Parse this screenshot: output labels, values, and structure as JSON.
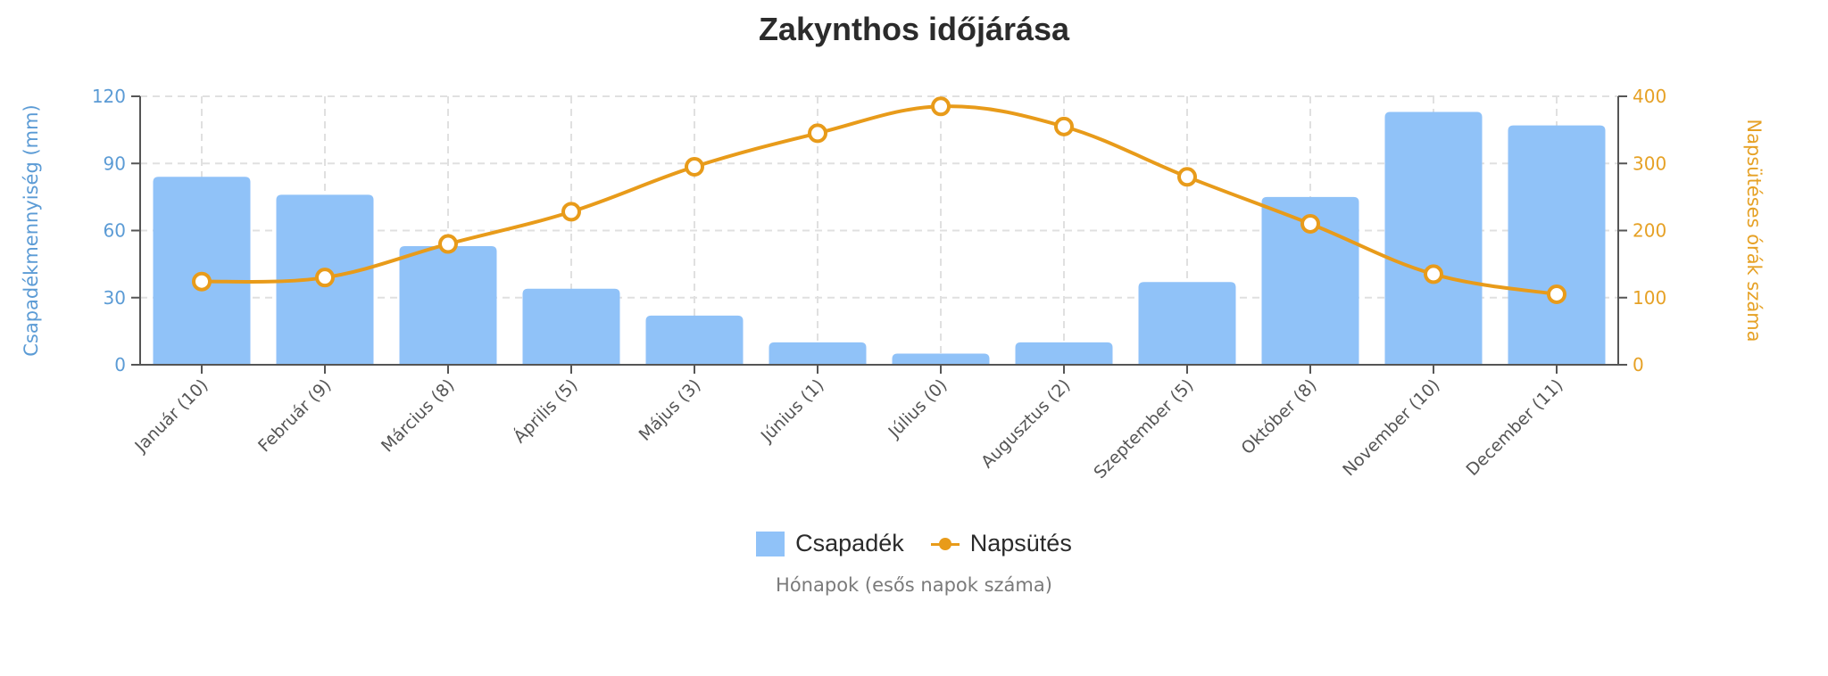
{
  "chart_data": {
    "type": "bar",
    "title": "Zakynthos időjárása",
    "xlabel": "Hónapok (esős napok száma)",
    "ylabel": "Csapadékmennyiség (mm)",
    "y2label": "Napsütéses órák száma",
    "categories": [
      "Január (10)",
      "Február (9)",
      "Március (8)",
      "Április (5)",
      "Május (3)",
      "Június (1)",
      "Július (0)",
      "Augusztus (2)",
      "Szeptember (5)",
      "Október (8)",
      "November (10)",
      "December (11)"
    ],
    "ylim": [
      0,
      120
    ],
    "y2lim": [
      0,
      400
    ],
    "yticks": [
      0,
      30,
      60,
      90,
      120
    ],
    "y2ticks": [
      0,
      100,
      200,
      300,
      400
    ],
    "grid": true,
    "legend_position": "bottom",
    "series": [
      {
        "name": "Csapadék",
        "type": "bar",
        "axis": "left",
        "color": "#90c2f8",
        "values": [
          84,
          76,
          53,
          34,
          22,
          10,
          5,
          10,
          37,
          75,
          113,
          107
        ]
      },
      {
        "name": "Napsütés",
        "type": "line",
        "axis": "right",
        "color": "#e89b1a",
        "smooth": true,
        "values": [
          124,
          130,
          180,
          228,
          295,
          345,
          385,
          355,
          280,
          210,
          135,
          105
        ]
      }
    ]
  },
  "colors": {
    "left_axis": "#5b9bd5",
    "right_axis": "#e6a125",
    "grid": "#e0e0e0",
    "axis_line": "#555555",
    "tick_label": "#555555"
  },
  "legend": {
    "items": [
      {
        "label": "Csapadék",
        "icon": "square-swatch"
      },
      {
        "label": "Napsütés",
        "icon": "line-marker"
      }
    ]
  }
}
